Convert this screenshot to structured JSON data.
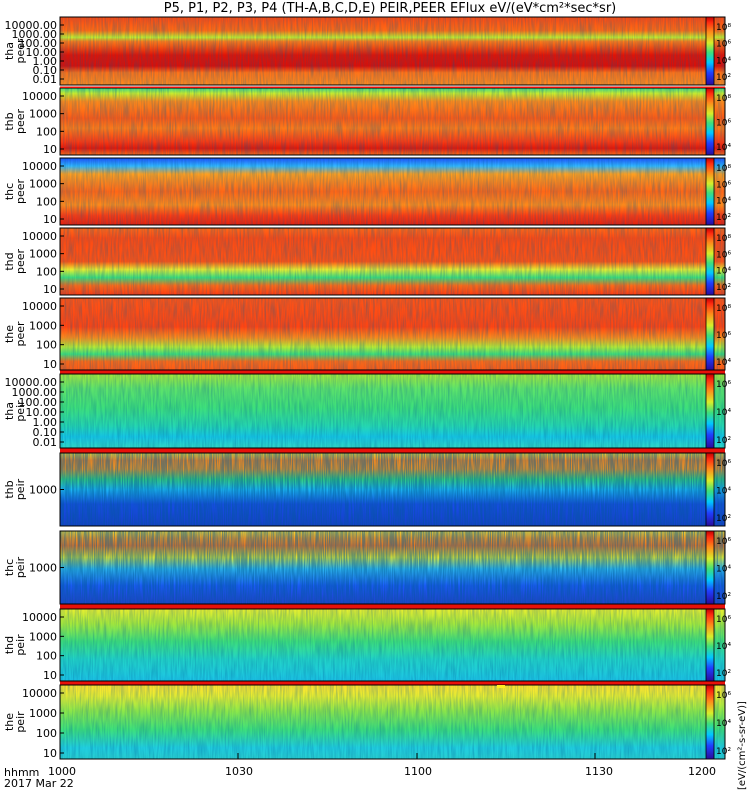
{
  "title": "P5, P1, P2, P3, P4 (TH-A,B,C,D,E) PEIR,PEER EFlux eV/(eV*cm²*sec*sr)",
  "colorbar_label": "[eV/(cm²-s-sr-eV)]",
  "time_axis": {
    "label_top": "hhmm",
    "label_bottom": "2017 Mar 22",
    "ticks": [
      "1000",
      "1030",
      "1100",
      "1130",
      "1200"
    ]
  },
  "chart_data": {
    "type": "heatmap",
    "time_range": [
      "1000",
      "1200"
    ],
    "panels": [
      {
        "probe": "tha",
        "species": "peer",
        "yticks": [
          "10000.00",
          "1000.00",
          "100.00",
          "10.00",
          "1.00",
          "0.10",
          "0.01"
        ],
        "cbar_ticks": [
          "10⁸",
          "10⁶",
          "10⁴",
          "10²"
        ]
      },
      {
        "probe": "thb",
        "species": "peer",
        "yticks": [
          "10000",
          "1000",
          "100",
          "10"
        ],
        "cbar_ticks": [
          "10⁸",
          "10⁶",
          "10⁴"
        ]
      },
      {
        "probe": "thc",
        "species": "peer",
        "yticks": [
          "10000",
          "1000",
          "100",
          "10"
        ],
        "cbar_ticks": [
          "10⁸",
          "10⁶",
          "10⁴",
          "10²"
        ]
      },
      {
        "probe": "thd",
        "species": "peer",
        "yticks": [
          "10000",
          "1000",
          "100",
          "10"
        ],
        "cbar_ticks": [
          "10⁸",
          "10⁶",
          "10⁴",
          "10²"
        ]
      },
      {
        "probe": "the",
        "species": "peer",
        "yticks": [
          "10000",
          "1000",
          "100",
          "10"
        ],
        "cbar_ticks": [
          "10⁸",
          "10⁶",
          "10⁴"
        ]
      },
      {
        "probe": "tha",
        "species": "peir",
        "yticks": [
          "10000.00",
          "1000.00",
          "100.00",
          "10.00",
          "1.00",
          "0.10",
          "0.01"
        ],
        "cbar_ticks": [
          "10⁶",
          "10⁴",
          "10²"
        ]
      },
      {
        "probe": "thb",
        "species": "peir",
        "yticks": [
          "1000"
        ],
        "cbar_ticks": [
          "10⁶",
          "10⁴",
          "10²"
        ]
      },
      {
        "probe": "thc",
        "species": "peir",
        "yticks": [
          "1000"
        ],
        "cbar_ticks": [
          "10⁶",
          "10⁴",
          "10²"
        ]
      },
      {
        "probe": "thd",
        "species": "peir",
        "yticks": [
          "10000",
          "1000",
          "100",
          "10"
        ],
        "cbar_ticks": [
          "10⁶",
          "10⁴",
          "10²"
        ]
      },
      {
        "probe": "the",
        "species": "peir",
        "yticks": [
          "10000",
          "1000",
          "100",
          "10"
        ],
        "cbar_ticks": [
          "10⁶",
          "10⁴",
          "10²"
        ]
      }
    ]
  }
}
